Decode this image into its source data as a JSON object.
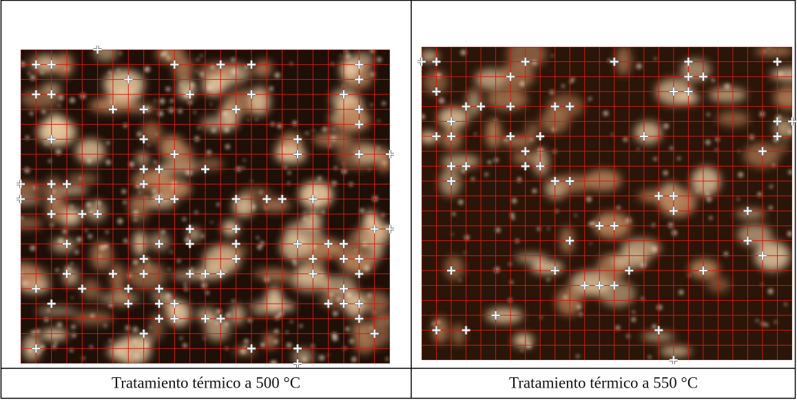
{
  "figure": {
    "panels": [
      {
        "caption": "Tratamiento térmico a 500 °C"
      },
      {
        "caption": "Tratamiento térmico a 550 °C"
      }
    ]
  }
}
